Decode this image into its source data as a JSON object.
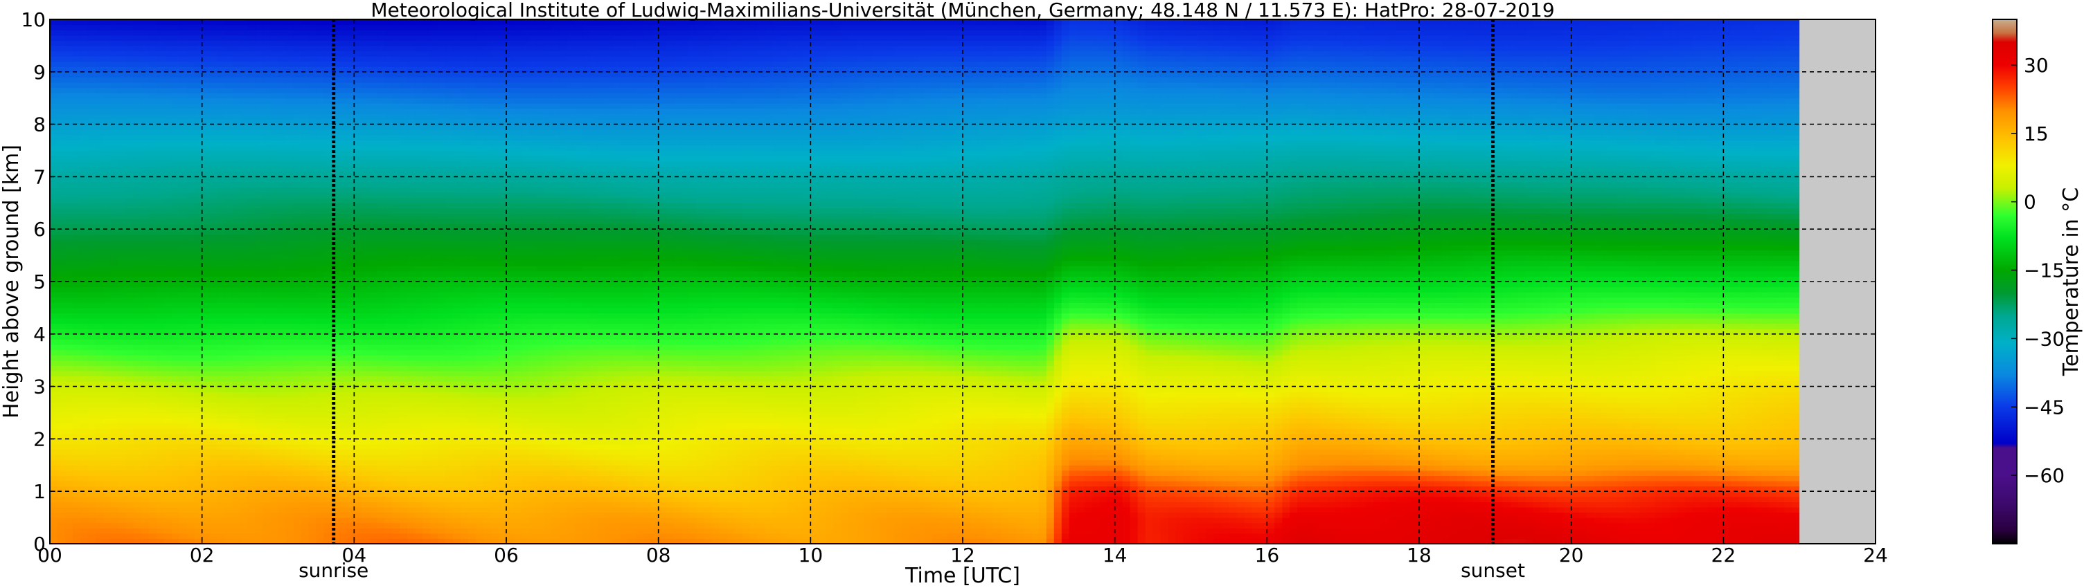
{
  "chart_data": {
    "type": "heatmap",
    "title": "Meteorological Institute of Ludwig-Maximilians-Universität (München, Germany; 48.148 N / 11.573 E):    HatPro: 28-07-2019",
    "xlabel": "Time [UTC]",
    "ylabel": "Height above ground [km]",
    "xlim": [
      0,
      24
    ],
    "ylim": [
      0,
      10
    ],
    "x_ticks": [
      "00",
      "02",
      "04",
      "06",
      "08",
      "10",
      "12",
      "14",
      "16",
      "18",
      "20",
      "22",
      "24"
    ],
    "y_ticks": [
      "0",
      "1",
      "2",
      "3",
      "4",
      "5",
      "6",
      "7",
      "8",
      "9",
      "10"
    ],
    "grid": true,
    "data_end_hour": 23.0,
    "no_data_color": "#c8c8c8",
    "events": [
      {
        "label": "sunrise",
        "hour": 3.73
      },
      {
        "label": "sunset",
        "hour": 18.97
      }
    ],
    "temperature_profile_c": {
      "height_km": [
        0.0,
        0.5,
        1.0,
        1.5,
        2.0,
        2.5,
        3.0,
        3.5,
        4.0,
        4.5,
        5.0,
        5.5,
        6.0,
        6.5,
        7.0,
        7.5,
        8.0,
        8.5,
        9.0,
        9.5,
        10.0
      ],
      "early_day": [
        20,
        18,
        15,
        12,
        9,
        6,
        3,
        -1,
        -5,
        -9,
        -13,
        -17,
        -21,
        -24,
        -27,
        -31,
        -35,
        -39,
        -43,
        -47,
        -52
      ],
      "afternoon_convection": [
        33,
        31,
        27,
        19,
        15,
        12,
        9,
        6,
        2,
        -4,
        -9,
        -14,
        -19,
        -23,
        -26,
        -30,
        -34,
        -38,
        -41,
        -44,
        -47
      ]
    },
    "colorbar": {
      "label": "Temperature in °C",
      "min": -75,
      "max": 40,
      "tick_values": [
        30,
        15,
        0,
        -15,
        -30,
        -45,
        -60
      ],
      "tick_labels": [
        "30",
        "15",
        "0",
        "−15",
        "−30",
        "−45",
        "−60"
      ],
      "color_stops": [
        {
          "value": -75,
          "color": "#000000"
        },
        {
          "value": -72,
          "color": "#2a0040"
        },
        {
          "value": -66,
          "color": "#3d0a6e"
        },
        {
          "value": -60,
          "color": "#4a0f8a"
        },
        {
          "value": -54,
          "color": "#4a0f8a"
        },
        {
          "value": -53,
          "color": "#0000c8"
        },
        {
          "value": -45,
          "color": "#0a3ae8"
        },
        {
          "value": -38,
          "color": "#0a88e0"
        },
        {
          "value": -31,
          "color": "#00b0c8"
        },
        {
          "value": -25,
          "color": "#00a890"
        },
        {
          "value": -20,
          "color": "#009a30"
        },
        {
          "value": -15,
          "color": "#00a800"
        },
        {
          "value": -8,
          "color": "#00e020"
        },
        {
          "value": -3,
          "color": "#30ff30"
        },
        {
          "value": 3,
          "color": "#c8f000"
        },
        {
          "value": 8,
          "color": "#f0f000"
        },
        {
          "value": 14,
          "color": "#ffc000"
        },
        {
          "value": 20,
          "color": "#ff9000"
        },
        {
          "value": 25,
          "color": "#ff4000"
        },
        {
          "value": 30,
          "color": "#ee0000"
        },
        {
          "value": 35,
          "color": "#dd0000"
        },
        {
          "value": 37,
          "color": "#c87040"
        },
        {
          "value": 40,
          "color": "#c8b090"
        }
      ]
    }
  }
}
